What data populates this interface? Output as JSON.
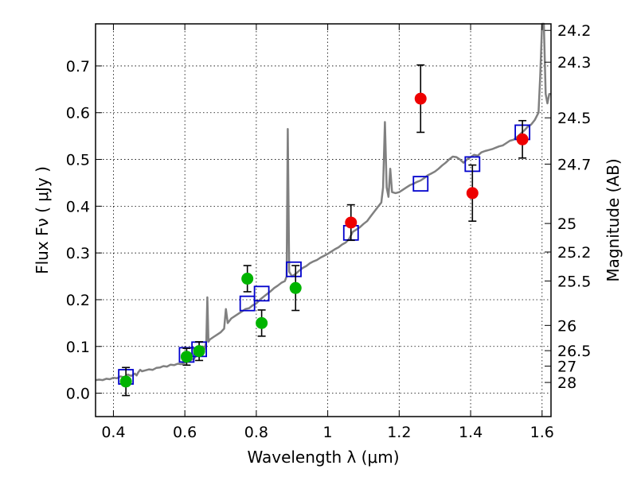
{
  "chart_data": {
    "type": "scatter",
    "xlabel": "Wavelength  λ (μm)",
    "ylabel": "Flux  Fν  ( μJy )",
    "y2label": "Magnitude (AB)",
    "xlim": [
      0.35,
      1.625
    ],
    "ylim": [
      -0.05,
      0.79
    ],
    "grid": true,
    "x_ticks": [
      {
        "v": 0.4,
        "label": "0.4"
      },
      {
        "v": 0.6,
        "label": "0.6"
      },
      {
        "v": 0.8,
        "label": "0.8"
      },
      {
        "v": 1.0,
        "label": "1"
      },
      {
        "v": 1.2,
        "label": "1.2"
      },
      {
        "v": 1.4,
        "label": "1.4"
      },
      {
        "v": 1.6,
        "label": "1.6"
      }
    ],
    "y_ticks": [
      {
        "v": 0.0,
        "label": "0.0"
      },
      {
        "v": 0.1,
        "label": "0.1"
      },
      {
        "v": 0.2,
        "label": "0.2"
      },
      {
        "v": 0.3,
        "label": "0.3"
      },
      {
        "v": 0.4,
        "label": "0.4"
      },
      {
        "v": 0.5,
        "label": "0.5"
      },
      {
        "v": 0.6,
        "label": "0.6"
      },
      {
        "v": 0.7,
        "label": "0.7"
      }
    ],
    "y2_ticks": [
      {
        "flux": 0.776,
        "label": "24.2"
      },
      {
        "flux": 0.708,
        "label": "24.3"
      },
      {
        "flux": 0.589,
        "label": "24.5"
      },
      {
        "flux": 0.49,
        "label": "24.7"
      },
      {
        "flux": 0.363,
        "label": "25"
      },
      {
        "flux": 0.302,
        "label": "25.2"
      },
      {
        "flux": 0.24,
        "label": "25.5"
      },
      {
        "flux": 0.145,
        "label": "26"
      },
      {
        "flux": 0.091,
        "label": "26.5"
      },
      {
        "flux": 0.058,
        "label": "27"
      },
      {
        "flux": 0.023,
        "label": "28"
      }
    ],
    "series": [
      {
        "marker": "line",
        "color": "#808080",
        "points": [
          [
            0.35,
            0.028
          ],
          [
            0.36,
            0.029
          ],
          [
            0.37,
            0.028
          ],
          [
            0.38,
            0.031
          ],
          [
            0.39,
            0.03
          ],
          [
            0.4,
            0.033
          ],
          [
            0.41,
            0.032
          ],
          [
            0.42,
            0.036
          ],
          [
            0.43,
            0.034
          ],
          [
            0.44,
            0.04
          ],
          [
            0.45,
            0.037
          ],
          [
            0.46,
            0.042
          ],
          [
            0.465,
            0.038
          ],
          [
            0.47,
            0.045
          ],
          [
            0.475,
            0.05
          ],
          [
            0.48,
            0.047
          ],
          [
            0.49,
            0.049
          ],
          [
            0.5,
            0.051
          ],
          [
            0.51,
            0.05
          ],
          [
            0.52,
            0.054
          ],
          [
            0.53,
            0.055
          ],
          [
            0.54,
            0.058
          ],
          [
            0.55,
            0.057
          ],
          [
            0.56,
            0.061
          ],
          [
            0.57,
            0.06
          ],
          [
            0.58,
            0.063
          ],
          [
            0.59,
            0.062
          ],
          [
            0.6,
            0.066
          ],
          [
            0.61,
            0.069
          ],
          [
            0.62,
            0.072
          ],
          [
            0.625,
            0.074
          ],
          [
            0.63,
            0.078
          ],
          [
            0.635,
            0.085
          ],
          [
            0.64,
            0.098
          ],
          [
            0.645,
            0.093
          ],
          [
            0.65,
            0.1
          ],
          [
            0.655,
            0.094
          ],
          [
            0.66,
            0.11
          ],
          [
            0.663,
            0.205
          ],
          [
            0.666,
            0.11
          ],
          [
            0.67,
            0.115
          ],
          [
            0.68,
            0.12
          ],
          [
            0.69,
            0.125
          ],
          [
            0.7,
            0.13
          ],
          [
            0.71,
            0.138
          ],
          [
            0.715,
            0.18
          ],
          [
            0.72,
            0.15
          ],
          [
            0.73,
            0.16
          ],
          [
            0.74,
            0.165
          ],
          [
            0.75,
            0.17
          ],
          [
            0.76,
            0.175
          ],
          [
            0.77,
            0.18
          ],
          [
            0.78,
            0.182
          ],
          [
            0.79,
            0.188
          ],
          [
            0.8,
            0.192
          ],
          [
            0.81,
            0.2
          ],
          [
            0.82,
            0.206
          ],
          [
            0.83,
            0.212
          ],
          [
            0.84,
            0.218
          ],
          [
            0.85,
            0.225
          ],
          [
            0.86,
            0.23
          ],
          [
            0.87,
            0.236
          ],
          [
            0.88,
            0.24
          ],
          [
            0.885,
            0.25
          ],
          [
            0.888,
            0.565
          ],
          [
            0.892,
            0.26
          ],
          [
            0.9,
            0.25
          ],
          [
            0.91,
            0.255
          ],
          [
            0.92,
            0.262
          ],
          [
            0.93,
            0.268
          ],
          [
            0.94,
            0.272
          ],
          [
            0.95,
            0.278
          ],
          [
            0.96,
            0.282
          ],
          [
            0.97,
            0.285
          ],
          [
            0.98,
            0.29
          ],
          [
            0.99,
            0.294
          ],
          [
            1.0,
            0.298
          ],
          [
            1.01,
            0.303
          ],
          [
            1.02,
            0.308
          ],
          [
            1.03,
            0.312
          ],
          [
            1.04,
            0.318
          ],
          [
            1.05,
            0.322
          ],
          [
            1.06,
            0.33
          ],
          [
            1.07,
            0.345
          ],
          [
            1.08,
            0.35
          ],
          [
            1.09,
            0.355
          ],
          [
            1.1,
            0.362
          ],
          [
            1.11,
            0.368
          ],
          [
            1.12,
            0.378
          ],
          [
            1.13,
            0.388
          ],
          [
            1.14,
            0.398
          ],
          [
            1.15,
            0.408
          ],
          [
            1.155,
            0.44
          ],
          [
            1.16,
            0.58
          ],
          [
            1.165,
            0.44
          ],
          [
            1.17,
            0.42
          ],
          [
            1.175,
            0.48
          ],
          [
            1.18,
            0.43
          ],
          [
            1.19,
            0.428
          ],
          [
            1.2,
            0.43
          ],
          [
            1.21,
            0.435
          ],
          [
            1.22,
            0.44
          ],
          [
            1.23,
            0.445
          ],
          [
            1.24,
            0.448
          ],
          [
            1.25,
            0.452
          ],
          [
            1.26,
            0.455
          ],
          [
            1.27,
            0.46
          ],
          [
            1.28,
            0.466
          ],
          [
            1.29,
            0.47
          ],
          [
            1.3,
            0.474
          ],
          [
            1.31,
            0.48
          ],
          [
            1.32,
            0.487
          ],
          [
            1.33,
            0.493
          ],
          [
            1.34,
            0.5
          ],
          [
            1.35,
            0.506
          ],
          [
            1.36,
            0.505
          ],
          [
            1.37,
            0.5
          ],
          [
            1.38,
            0.493
          ],
          [
            1.39,
            0.5
          ],
          [
            1.4,
            0.505
          ],
          [
            1.41,
            0.51
          ],
          [
            1.42,
            0.508
          ],
          [
            1.43,
            0.515
          ],
          [
            1.44,
            0.518
          ],
          [
            1.45,
            0.52
          ],
          [
            1.46,
            0.522
          ],
          [
            1.47,
            0.525
          ],
          [
            1.48,
            0.528
          ],
          [
            1.49,
            0.53
          ],
          [
            1.5,
            0.535
          ],
          [
            1.51,
            0.54
          ],
          [
            1.52,
            0.542
          ],
          [
            1.53,
            0.548
          ],
          [
            1.54,
            0.555
          ],
          [
            1.55,
            0.562
          ],
          [
            1.56,
            0.57
          ],
          [
            1.57,
            0.575
          ],
          [
            1.58,
            0.585
          ],
          [
            1.59,
            0.6
          ],
          [
            1.595,
            0.68
          ],
          [
            1.6,
            0.79
          ],
          [
            1.605,
            0.79
          ],
          [
            1.61,
            0.64
          ],
          [
            1.615,
            0.62
          ],
          [
            1.62,
            0.64
          ],
          [
            1.625,
            0.64
          ]
        ]
      },
      {
        "marker": "square",
        "color": "#0000cc",
        "points": [
          [
            0.435,
            0.035
          ],
          [
            0.605,
            0.082
          ],
          [
            0.64,
            0.094
          ],
          [
            0.775,
            0.192
          ],
          [
            0.815,
            0.213
          ],
          [
            0.905,
            0.265
          ],
          [
            1.065,
            0.343
          ],
          [
            1.26,
            0.448
          ],
          [
            1.405,
            0.49
          ],
          [
            1.545,
            0.558
          ]
        ]
      },
      {
        "marker": "circle",
        "color": "#00b400",
        "points": [
          {
            "x": 0.435,
            "y": 0.025,
            "err": 0.03
          },
          {
            "x": 0.605,
            "y": 0.078,
            "err": 0.018
          },
          {
            "x": 0.64,
            "y": 0.09,
            "err": 0.02
          },
          {
            "x": 0.775,
            "y": 0.245,
            "err": 0.028
          },
          {
            "x": 0.815,
            "y": 0.15,
            "err": 0.028
          },
          {
            "x": 0.91,
            "y": 0.225,
            "err": 0.048
          }
        ]
      },
      {
        "marker": "circle",
        "color": "#ee0000",
        "points": [
          {
            "x": 1.065,
            "y": 0.365,
            "err": 0.038
          },
          {
            "x": 1.26,
            "y": 0.63,
            "err": 0.072
          },
          {
            "x": 1.405,
            "y": 0.428,
            "err": 0.06
          },
          {
            "x": 1.545,
            "y": 0.543,
            "err": 0.04
          }
        ]
      }
    ]
  }
}
